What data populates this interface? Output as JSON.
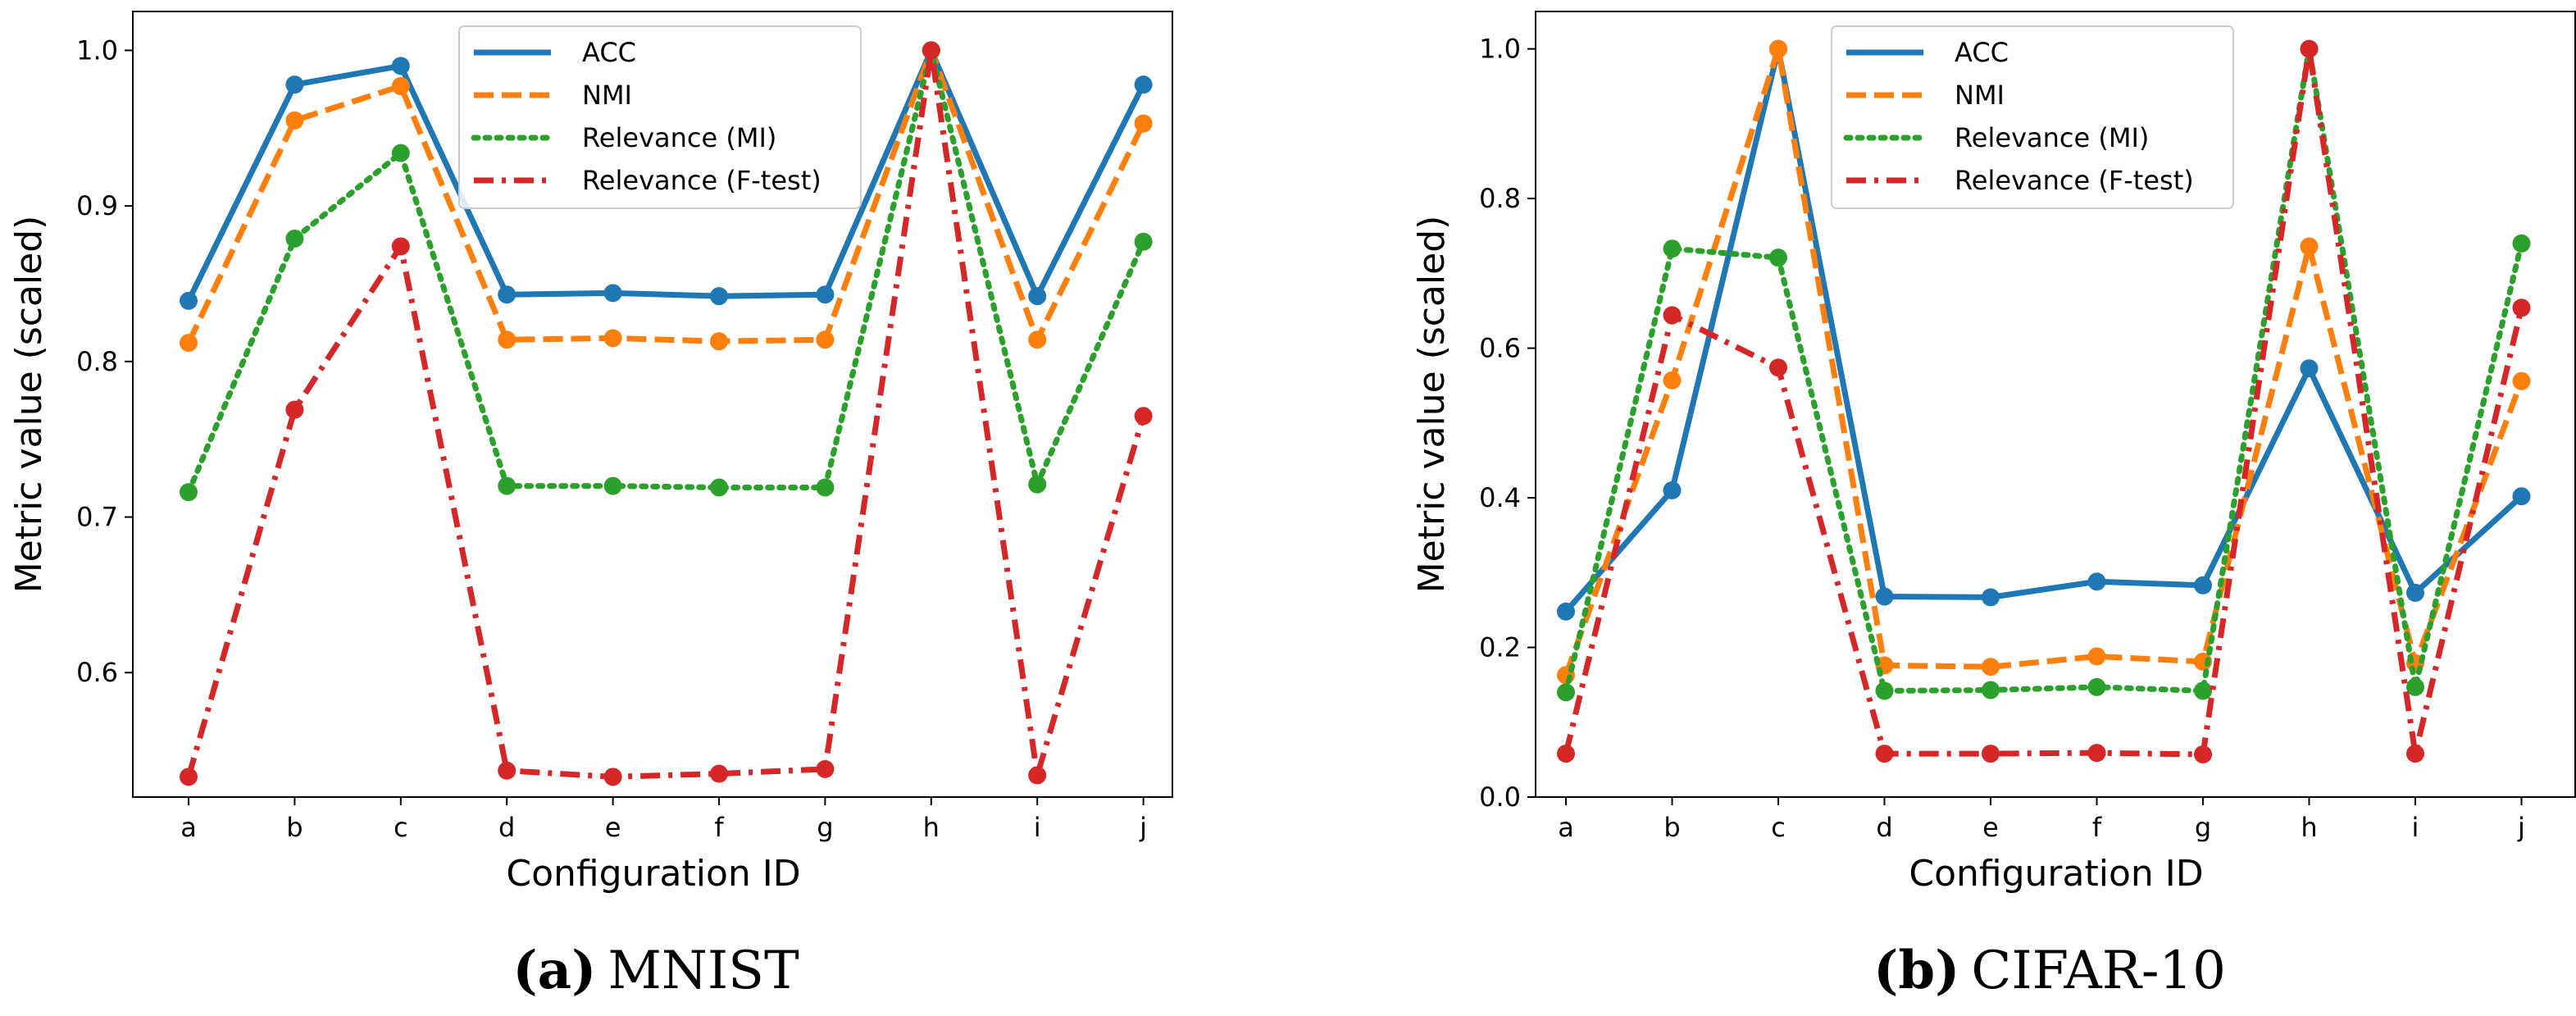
{
  "colors": {
    "acc": "#1f77b4",
    "nmi": "#ff7f0e",
    "relevance_mi": "#2ca02c",
    "relevance_f": "#d62728"
  },
  "chart_data": [
    {
      "type": "line",
      "caption_letter": "(a)",
      "caption_name": "MNIST",
      "xlabel": "Configuration ID",
      "ylabel": "Metric value (scaled)",
      "categories": [
        "a",
        "b",
        "c",
        "d",
        "e",
        "f",
        "g",
        "h",
        "i",
        "j"
      ],
      "ylim": [
        0.52,
        1.025
      ],
      "yticks": [
        0.6,
        0.7,
        0.8,
        0.9,
        1.0
      ],
      "ytick_labels": [
        "0.6",
        "0.7",
        "0.8",
        "0.9",
        "1.0"
      ],
      "legend_position": "top-center",
      "series": [
        {
          "name": "ACC",
          "style": "solid",
          "values": [
            0.839,
            0.978,
            0.99,
            0.843,
            0.844,
            0.842,
            0.843,
            1.0,
            0.842,
            0.978
          ]
        },
        {
          "name": "NMI",
          "style": "dashed",
          "values": [
            0.812,
            0.955,
            0.977,
            0.814,
            0.815,
            0.813,
            0.814,
            1.0,
            0.814,
            0.953
          ]
        },
        {
          "name": "Relevance (MI)",
          "style": "dotted",
          "values": [
            0.716,
            0.879,
            0.934,
            0.72,
            0.72,
            0.719,
            0.719,
            1.0,
            0.721,
            0.877
          ]
        },
        {
          "name": "Relevance (F-test)",
          "style": "dashdot",
          "values": [
            0.533,
            0.769,
            0.874,
            0.537,
            0.533,
            0.535,
            0.538,
            1.0,
            0.534,
            0.765
          ]
        }
      ]
    },
    {
      "type": "line",
      "caption_letter": "(b)",
      "caption_name": "CIFAR-10",
      "xlabel": "Configuration ID",
      "ylabel": "Metric value (scaled)",
      "categories": [
        "a",
        "b",
        "c",
        "d",
        "e",
        "f",
        "g",
        "h",
        "i",
        "j"
      ],
      "ylim": [
        0.0,
        1.05
      ],
      "yticks": [
        0.0,
        0.2,
        0.4,
        0.6,
        0.8,
        1.0
      ],
      "ytick_labels": [
        "0.0",
        "0.2",
        "0.4",
        "0.6",
        "0.8",
        "1.0"
      ],
      "legend_position": "top-center",
      "series": [
        {
          "name": "ACC",
          "style": "solid",
          "values": [
            0.248,
            0.41,
            1.0,
            0.268,
            0.267,
            0.288,
            0.283,
            0.573,
            0.273,
            0.402
          ]
        },
        {
          "name": "NMI",
          "style": "dashed",
          "values": [
            0.163,
            0.557,
            1.0,
            0.176,
            0.174,
            0.188,
            0.181,
            0.736,
            0.179,
            0.556
          ]
        },
        {
          "name": "Relevance (MI)",
          "style": "dotted",
          "values": [
            0.14,
            0.733,
            0.721,
            0.142,
            0.143,
            0.147,
            0.142,
            1.0,
            0.147,
            0.74
          ]
        },
        {
          "name": "Relevance (F-test)",
          "style": "dashdot",
          "values": [
            0.058,
            0.644,
            0.574,
            0.058,
            0.058,
            0.059,
            0.057,
            1.0,
            0.058,
            0.654
          ]
        }
      ]
    }
  ]
}
